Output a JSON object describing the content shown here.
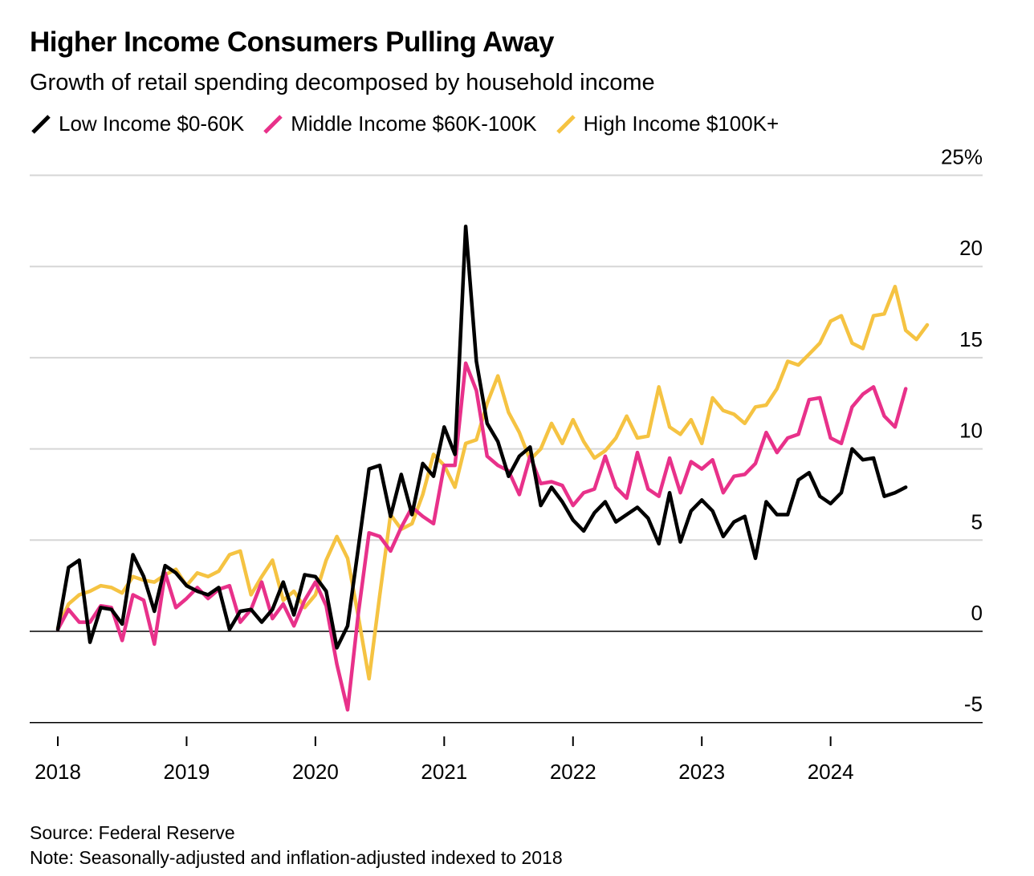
{
  "title": "Higher Income Consumers Pulling Away",
  "subtitle": "Growth of retail spending decomposed by household income",
  "legend": [
    {
      "label": "Low Income $0-60K",
      "color": "#000000"
    },
    {
      "label": "Middle Income $60K-100K",
      "color": "#e8318a"
    },
    {
      "label": "High Income $100K+",
      "color": "#f5c342"
    }
  ],
  "footer": {
    "source": "Source: Federal Reserve",
    "note": "Note: Seasonally-adjusted and inflation-adjusted indexed to 2018"
  },
  "chart_data": {
    "type": "line",
    "title": "Higher Income Consumers Pulling Away",
    "subtitle": "Growth of retail spending decomposed by household income",
    "x_start": "2018-01",
    "x_frequency": "monthly",
    "x_ticks": [
      "2018",
      "2019",
      "2020",
      "2021",
      "2022",
      "2023",
      "2024"
    ],
    "y_ticks": [
      {
        "value": 25,
        "label": "25%"
      },
      {
        "value": 20,
        "label": "20"
      },
      {
        "value": 15,
        "label": "15"
      },
      {
        "value": 10,
        "label": "10"
      },
      {
        "value": 5,
        "label": "5"
      },
      {
        "value": 0,
        "label": "0"
      },
      {
        "value": -5,
        "label": "-5"
      }
    ],
    "ylim": [
      -5,
      25
    ],
    "grid": true,
    "zero_line": true,
    "y_axis_side": "right",
    "series": [
      {
        "name": "High Income $100K+",
        "color": "#f5c342",
        "values": [
          0.2,
          1.5,
          2.0,
          2.2,
          2.5,
          2.4,
          2.1,
          3.0,
          2.8,
          2.7,
          3.1,
          3.4,
          2.5,
          3.2,
          3.0,
          3.3,
          4.2,
          4.4,
          2.0,
          3.0,
          3.9,
          1.7,
          2.2,
          1.3,
          2.0,
          3.9,
          5.2,
          4.0,
          0.8,
          -2.6,
          2.0,
          6.4,
          5.6,
          5.9,
          7.5,
          9.7,
          9.1,
          7.9,
          10.3,
          10.5,
          12.5,
          14.0,
          12.0,
          10.9,
          9.4,
          10.0,
          11.4,
          10.3,
          11.6,
          10.4,
          9.5,
          9.9,
          10.6,
          11.8,
          10.6,
          10.7,
          13.4,
          11.2,
          10.8,
          11.6,
          10.3,
          12.8,
          12.1,
          11.9,
          11.4,
          12.3,
          12.4,
          13.3,
          14.8,
          14.6,
          15.2,
          15.8,
          17.0,
          17.3,
          15.8,
          15.5,
          17.3,
          17.4,
          18.9,
          16.5,
          16.0,
          16.8
        ]
      },
      {
        "name": "Middle Income $60K-100K",
        "color": "#e8318a",
        "values": [
          0.1,
          1.2,
          0.5,
          0.5,
          1.4,
          1.3,
          -0.5,
          2.0,
          1.7,
          -0.7,
          3.2,
          1.3,
          1.8,
          2.4,
          1.8,
          2.3,
          2.5,
          0.5,
          1.2,
          2.7,
          0.7,
          1.5,
          0.3,
          1.7,
          2.7,
          1.4,
          -1.8,
          -4.3,
          1.0,
          5.4,
          5.2,
          4.4,
          5.7,
          6.8,
          6.3,
          5.9,
          9.1,
          9.1,
          14.7,
          13.2,
          9.6,
          9.1,
          8.8,
          7.5,
          9.6,
          8.1,
          8.2,
          8.0,
          6.9,
          7.6,
          7.8,
          9.6,
          7.9,
          7.3,
          9.8,
          7.8,
          7.4,
          9.5,
          7.6,
          9.3,
          8.9,
          9.4,
          7.6,
          8.5,
          8.6,
          9.2,
          10.9,
          9.8,
          10.6,
          10.8,
          12.7,
          12.8,
          10.6,
          10.3,
          12.3,
          13.0,
          13.4,
          11.8,
          11.2,
          13.3
        ]
      },
      {
        "name": "Low Income $0-60K",
        "color": "#000000",
        "values": [
          0.1,
          3.5,
          3.9,
          -0.6,
          1.3,
          1.2,
          0.4,
          4.2,
          3.0,
          1.1,
          3.6,
          3.2,
          2.5,
          2.2,
          2.0,
          2.4,
          0.1,
          1.1,
          1.2,
          0.5,
          1.2,
          2.7,
          0.9,
          3.1,
          3.0,
          2.2,
          -0.9,
          0.3,
          4.6,
          8.9,
          9.1,
          6.3,
          8.6,
          6.4,
          9.2,
          8.5,
          11.2,
          9.7,
          22.2,
          14.8,
          11.4,
          10.4,
          8.5,
          9.6,
          10.1,
          6.9,
          7.9,
          7.1,
          6.1,
          5.5,
          6.5,
          7.1,
          6.0,
          6.4,
          6.8,
          6.2,
          4.8,
          7.6,
          4.9,
          6.6,
          7.2,
          6.6,
          5.2,
          6.0,
          6.3,
          4.0,
          7.1,
          6.4,
          6.4,
          8.3,
          8.7,
          7.4,
          7.0,
          7.6,
          10.0,
          9.4,
          9.5,
          7.4,
          7.6,
          7.9
        ]
      }
    ]
  }
}
